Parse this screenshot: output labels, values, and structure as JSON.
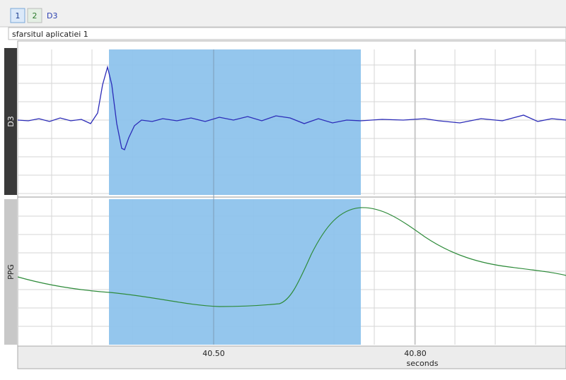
{
  "toolbar": {
    "tabs": [
      "1",
      "2"
    ],
    "channel": "D3"
  },
  "event_label": "sfarsitul aplicatiei 1",
  "panels": [
    {
      "label": "D3"
    },
    {
      "label": "PPG"
    }
  ],
  "time_axis": {
    "ticks": [
      "40.50",
      "40.80"
    ],
    "unit": "seconds"
  }
}
